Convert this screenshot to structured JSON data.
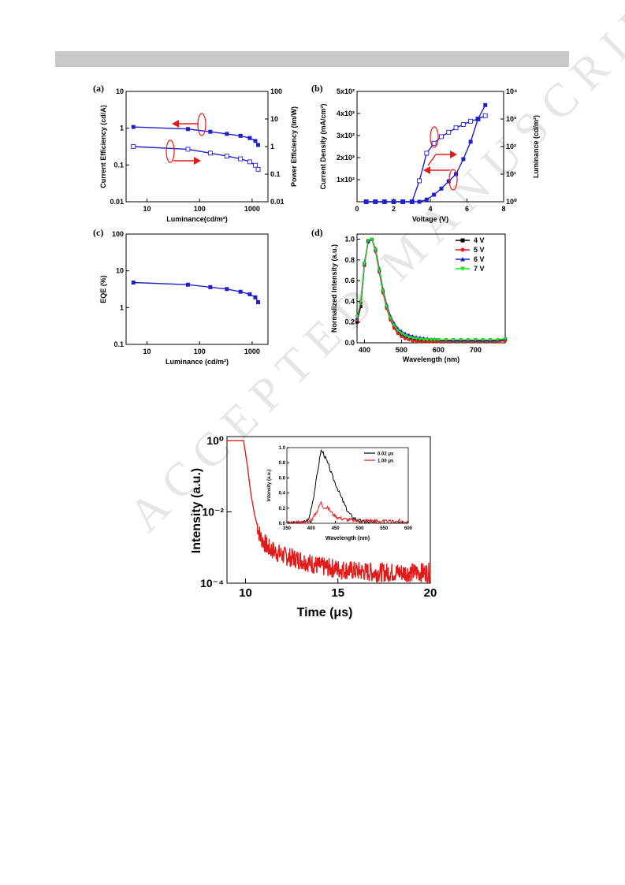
{
  "watermark": "ACCEPTED MANUSCRIPT",
  "colors": {
    "blue": "#1f1fcc",
    "red": "#e31a1a",
    "black": "#000000",
    "green": "#22dd22",
    "arrow": "#e31a1a"
  },
  "chart_data": [
    {
      "id": "a",
      "panel_label": "(a)",
      "type": "line",
      "xlabel": "Luminance(cd/m²)",
      "ylabel": "Current Efficiency (cd/A)",
      "y2label": "Power Efficiency (lm/W)",
      "xscale": "log",
      "yscale": "log",
      "xlim": [
        4,
        2000
      ],
      "ylim": [
        0.01,
        10
      ],
      "y2lim": [
        0.01,
        100
      ],
      "xticks": [
        "10",
        "100",
        "1000"
      ],
      "yticks": [
        "0.01",
        "0.1",
        "1",
        "10"
      ],
      "y2ticks": [
        "0.01",
        "0.1",
        "1",
        "10",
        "100"
      ],
      "series": [
        {
          "axis": "left",
          "marker": "filled-square",
          "x": [
            5.5,
            60,
            160,
            330,
            600,
            900,
            1150,
            1300
          ],
          "y": [
            1.08,
            0.95,
            0.8,
            0.7,
            0.62,
            0.54,
            0.45,
            0.35
          ]
        },
        {
          "axis": "right",
          "marker": "open-square",
          "x": [
            5.5,
            60,
            160,
            330,
            600,
            900,
            1150,
            1300
          ],
          "y": [
            1.0,
            0.8,
            0.58,
            0.45,
            0.36,
            0.28,
            0.21,
            0.15
          ]
        }
      ]
    },
    {
      "id": "b",
      "panel_label": "(b)",
      "type": "line",
      "xlabel": "Voltage (V)",
      "ylabel": "Current Density (mA/cm²)",
      "y2label": "Luminance (cd/m²)",
      "xscale": "linear",
      "yscale": "linear",
      "xlim": [
        0,
        8
      ],
      "ylim": [
        0,
        500
      ],
      "y2lim": [
        1,
        10000
      ],
      "y2scale": "log",
      "xticks": [
        "0",
        "2",
        "4",
        "6",
        "8"
      ],
      "yticks": [
        "1x10²",
        "2x10²",
        "3x10²",
        "4x10²",
        "5x10²"
      ],
      "y2ticks": [
        "10⁰",
        "10¹",
        "10²",
        "10³",
        "10⁴"
      ],
      "series": [
        {
          "axis": "left",
          "marker": "open-square",
          "x": [
            0.5,
            1,
            1.5,
            2,
            2.5,
            3,
            3.4,
            3.8,
            4.2,
            4.6,
            5.0,
            5.4,
            5.8,
            6.2,
            6.6,
            7.0
          ],
          "y": [
            0,
            0,
            0,
            0,
            0,
            0,
            95,
            220,
            265,
            295,
            315,
            335,
            350,
            365,
            375,
            390
          ]
        },
        {
          "axis": "right",
          "marker": "filled-square",
          "x": [
            0.5,
            1,
            1.5,
            2,
            2.5,
            3,
            3.4,
            3.8,
            4.2,
            4.6,
            5.0,
            5.4,
            5.8,
            6.2,
            6.6,
            7.0
          ],
          "y": [
            1,
            1,
            1,
            1,
            1,
            1,
            1,
            1.2,
            1.8,
            3,
            5.5,
            10,
            35,
            150,
            1000,
            3200
          ]
        }
      ]
    },
    {
      "id": "c",
      "panel_label": "(c)",
      "type": "line",
      "xlabel": "Luminance (cd/m²)",
      "ylabel": "EQE (%)",
      "xscale": "log",
      "yscale": "log",
      "xlim": [
        4,
        2000
      ],
      "ylim": [
        0.1,
        100
      ],
      "xticks": [
        "10",
        "100",
        "1000"
      ],
      "yticks": [
        "0.1",
        "1",
        "10",
        "100"
      ],
      "series": [
        {
          "marker": "filled-square",
          "x": [
            5.5,
            60,
            160,
            330,
            600,
            900,
            1150,
            1300
          ],
          "y": [
            4.8,
            4.2,
            3.6,
            3.2,
            2.7,
            2.3,
            1.9,
            1.4
          ]
        }
      ]
    },
    {
      "id": "d",
      "panel_label": "(d)",
      "type": "line",
      "xlabel": "Wavelength (nm)",
      "ylabel": "Normalized Intensity (a.u.)",
      "xscale": "linear",
      "yscale": "linear",
      "xlim": [
        380,
        780
      ],
      "ylim": [
        0,
        1.05
      ],
      "xticks": [
        "400",
        "500",
        "600",
        "700"
      ],
      "yticks": [
        "0.0",
        "0.2",
        "0.4",
        "0.6",
        "0.8",
        "1.0"
      ],
      "legend": "top-right",
      "x": [
        380,
        390,
        400,
        410,
        420,
        430,
        440,
        450,
        460,
        470,
        480,
        490,
        500,
        510,
        520,
        530,
        540,
        550,
        560,
        570,
        580,
        590,
        600,
        620,
        640,
        660,
        680,
        700,
        720,
        740,
        760,
        780
      ],
      "series": [
        {
          "name": "4 V",
          "marker": "square",
          "y": [
            0.2,
            0.35,
            0.75,
            0.98,
            1.0,
            0.9,
            0.7,
            0.5,
            0.35,
            0.24,
            0.16,
            0.11,
            0.08,
            0.06,
            0.045,
            0.035,
            0.03,
            0.025,
            0.02,
            0.02,
            0.02,
            0.02,
            0.02,
            0.02,
            0.02,
            0.02,
            0.02,
            0.02,
            0.02,
            0.02,
            0.02,
            0.03
          ]
        },
        {
          "name": "5 V",
          "marker": "circle",
          "y": [
            0.22,
            0.38,
            0.76,
            0.97,
            1.0,
            0.88,
            0.68,
            0.48,
            0.33,
            0.22,
            0.14,
            0.09,
            0.06,
            0.04,
            0.03,
            0.02,
            0.015,
            0.01,
            0.01,
            0.01,
            0.01,
            0.01,
            0.01,
            0.01,
            0.01,
            0.01,
            0.01,
            0.01,
            0.01,
            0.01,
            0.01,
            0.02
          ]
        },
        {
          "name": "6 V",
          "marker": "triangle-up",
          "y": [
            0.24,
            0.4,
            0.78,
            0.98,
            1.0,
            0.91,
            0.72,
            0.52,
            0.37,
            0.26,
            0.19,
            0.14,
            0.11,
            0.09,
            0.075,
            0.065,
            0.055,
            0.05,
            0.045,
            0.04,
            0.035,
            0.035,
            0.03,
            0.03,
            0.025,
            0.025,
            0.025,
            0.025,
            0.025,
            0.025,
            0.03,
            0.04
          ]
        },
        {
          "name": "7 V",
          "marker": "triangle-down",
          "y": [
            0.25,
            0.4,
            0.77,
            0.99,
            1.0,
            0.9,
            0.7,
            0.5,
            0.35,
            0.24,
            0.17,
            0.12,
            0.09,
            0.07,
            0.055,
            0.045,
            0.04,
            0.035,
            0.03,
            0.03,
            0.03,
            0.03,
            0.03,
            0.03,
            0.03,
            0.03,
            0.03,
            0.03,
            0.03,
            0.03,
            0.03,
            0.04
          ]
        }
      ]
    },
    {
      "id": "decay",
      "type": "line",
      "xlabel": "Time (μs)",
      "ylabel": "Intensity (a.u.)",
      "xscale": "linear",
      "yscale": "log",
      "xlim": [
        9,
        20
      ],
      "ylim": [
        0.0001,
        1.3
      ],
      "xticks": [
        "10",
        "15",
        "20"
      ],
      "yticks": [
        "10⁰",
        "10⁻²",
        "10⁻⁴"
      ],
      "series": [
        {
          "model": "plateau 1.0 until 9.9 μs, fast decay to ~1e-3 by 11 μs, tail ~2e-4 with noise",
          "x": [
            9.0,
            9.9,
            10.1,
            10.3,
            10.5,
            10.8,
            11.2,
            12,
            13,
            14,
            15,
            16,
            17,
            18,
            19,
            20
          ],
          "y": [
            1.0,
            1.0,
            0.2,
            0.03,
            0.008,
            0.002,
            0.001,
            0.0006,
            0.00045,
            0.0003,
            0.00025,
            0.00022,
            0.0002,
            0.0002,
            0.0002,
            0.0002
          ]
        }
      ]
    },
    {
      "id": "decay-inset",
      "type": "line",
      "xlabel": "Wavelength (nm)",
      "ylabel": "Intensity (a.u.)",
      "xscale": "linear",
      "yscale": "linear",
      "xlim": [
        350,
        600
      ],
      "ylim": [
        0,
        1.0
      ],
      "xticks": [
        "350",
        "400",
        "450",
        "500",
        "550",
        "600"
      ],
      "yticks": [
        "0.0",
        "0.2",
        "0.4",
        "0.6",
        "0.8",
        "1.0"
      ],
      "legend": "top-right",
      "x": [
        350,
        380,
        395,
        405,
        415,
        420,
        425,
        435,
        445,
        455,
        465,
        475,
        485,
        500,
        520,
        540,
        560,
        580,
        600
      ],
      "series": [
        {
          "name": "0.02 μs",
          "y": [
            0.0,
            0.0,
            0.05,
            0.35,
            0.75,
            0.96,
            0.93,
            0.78,
            0.6,
            0.45,
            0.3,
            0.16,
            0.08,
            0.03,
            0.01,
            0.0,
            0.0,
            0.0,
            0.0
          ]
        },
        {
          "name": "1.00 μs",
          "y": [
            0.0,
            0.01,
            0.02,
            0.08,
            0.2,
            0.28,
            0.22,
            0.2,
            0.12,
            0.08,
            0.06,
            0.05,
            0.04,
            0.03,
            0.04,
            0.03,
            0.02,
            0.03,
            0.02
          ]
        }
      ]
    }
  ]
}
